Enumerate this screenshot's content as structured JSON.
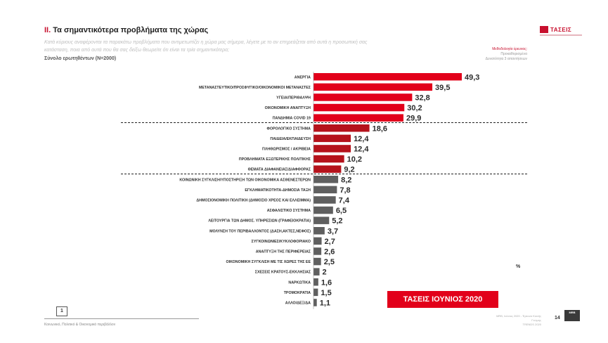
{
  "slide": {
    "title_prefix": "II.",
    "title_text": "Τα σημαντικότερα προβλήματα της χώρας",
    "subtitle": "Κατά κύριους αναφέρονται τα παρακάτω προβλήματα που αντιμετωπίζει η χώρα μας σήμερα, λέγετε με το αν επηρεάζεται από αυτά η προσωπική σας κατάσταση, ποια από αυτά που θα σας δείξω θεωρείτε ότι είναι τα τρία σημαντικότερα;",
    "base": "Σύνολο ερωτηθέντων (N=2000)",
    "logo": "ΤΑΣΕΙΣ",
    "method_line1": "Μεθοδολογία έρευνας:",
    "method_line2": "Προκαθορισμένα",
    "method_line3": "Δυνατότητα 3 απαντήσεων",
    "badge": "ΤΑΣΕΙΣ ΙΟΥΝΙΟΣ 2020",
    "percent_sign": "%",
    "page_box": "1",
    "footer_left": "Κοινωνικό, Πολιτικό & Οικονομικό περιβάλλον",
    "footer_right_1": "MRB, Ιούνιος 2020 - Έρευνα Κοινής Γνώμης",
    "footer_right_2": "TRENDS 2020",
    "page_number": "14",
    "corner_logo": "MRB"
  },
  "chart_data": {
    "type": "bar",
    "orientation": "horizontal",
    "title": "Τα σημαντικότερα προβλήματα της χώρας",
    "unit": "%",
    "categories": [
      "ΑΝΕΡΓΙΑ",
      "ΜΕΤΑΝΑΣΤΕΥΤΙΚΟ/ΠΡΟΣΦΥΓΙΚΟ/ΟΙΚΟΝΟΜΙΚΟΙ ΜΕΤΑΝΑΣΤΕΣ",
      "ΥΓΕΙΑ/ΠΕΡΙΘΑΛΨΗ",
      "ΟΙΚΟΝΟΜΙΚΗ ΑΝΑΠΤΥΞΗ",
      "ΠΑΝΔΗΜΙΑ COVID 19",
      "ΦΟΡΟΛΟΓΙΚΟ ΣΥΣΤΗΜΑ",
      "ΠΑΙΔΕΙΑ/ΕΚΠΑΙΔΕΥΣΗ",
      "ΠΛΗΘΩΡΙΣΜΟΣ / ΑΚΡΙΒΕΙΑ",
      "ΠΡΟΒΛΗΜΑΤΑ ΕΞΩΤΕΡΙΚΗΣ ΠΟΛΙΤΙΚΗΣ",
      "ΘΕΜΑΤΑ ΔΙΑΦΑΝΕΙΑΣ/ΔΙΑΦΘΟΡΑΣ",
      "ΚΟΙΝΩΝΙΚΗ ΣΥΓΚΛΙΣΗ/ΥΠΟΣΤΗΡΙΞΗ ΤΩΝ ΟΙΚΟΝΟΜΙΚΑ ΑΣΘΕΝΕΣΤΕΡΩΝ",
      "ΕΓΚΛΗΜΑΤΙΚΟΤΗΤΑ-ΔΗΜΟΣΙΑ ΤΑΞΗ",
      "ΔΗΜΟΣΙΟΝΟΜΙΚΗ ΠΟΛΙΤΙΚΗ (ΔΗΜΟΣΙΟ ΧΡΕΟΣ ΚΑΙ ΕΛΛΕΙΜΜΑ)",
      "ΑΣΦΑΛΙΣΤΙΚΟ ΣΥΣΤΗΜΑ",
      "ΛΕΙΤΟΥΡΓΙΑ ΤΩΝ ΔΗΜΟΣ. ΥΠΗΡΕΣΙΩΝ (ΓΡΑΦΕΙΟΚΡΑΤΙΑ)",
      "ΜΟΛΥΝΣΗ ΤΟΥ ΠΕΡΙΒΑΛΛΟΝΤΟΣ (ΔΑΣΗ,ΑΚΤΕΣ,ΝΕΦΟΣ)",
      "ΣΥΓΚΟΙΝΩΝΙΕΣ/ΚΥΚΛΟΦΟΡΙΑΚΟ",
      "ΑΝΑΠΤΥΞΗ ΤΗΣ ΠΕΡΙΦΕΡΕΙΑΣ",
      "ΟΙΚΟΝΟΜΙΚΗ ΣΥΓΚΛΙΣΗ ΜΕ ΤΙΣ ΧΩΡΕΣ ΤΗΣ ΕΕ",
      "ΣΧΕΣΕΙΣ ΚΡΑΤΟΥΣ-ΕΚΚΛΗΣΙΑΣ",
      "ΝΑΡΚΩΤΙΚΑ",
      "ΤΡΟΜΟΚΡΑΤΙΑ",
      "ΑΛΛΟ/ΔΕΞ/ΔΑ"
    ],
    "values": [
      49.3,
      39.5,
      32.8,
      30.2,
      29.9,
      18.6,
      12.4,
      12.4,
      10.2,
      9.2,
      8.2,
      7.8,
      7.4,
      6.5,
      5.2,
      3.7,
      2.7,
      2.6,
      2.5,
      2,
      1.6,
      1.5,
      1.1
    ],
    "value_labels": [
      "49,3",
      "39,5",
      "32,8",
      "30,2",
      "29,9",
      "18,6",
      "12,4",
      "12,4",
      "10,2",
      "9,2",
      "8,2",
      "7,8",
      "7,4",
      "6,5",
      "5,2",
      "3,7",
      "2,7",
      "2,6",
      "2,5",
      "2",
      "1,6",
      "1,5",
      "1,1"
    ],
    "groups": [
      {
        "from": 0,
        "to": 4,
        "color": "#e2001a"
      },
      {
        "from": 5,
        "to": 9,
        "color": "#b5121b"
      },
      {
        "from": 10,
        "to": 22,
        "color": "#5f5f5f"
      }
    ],
    "xlim": [
      0,
      50
    ],
    "grid": false,
    "legend": "none"
  }
}
